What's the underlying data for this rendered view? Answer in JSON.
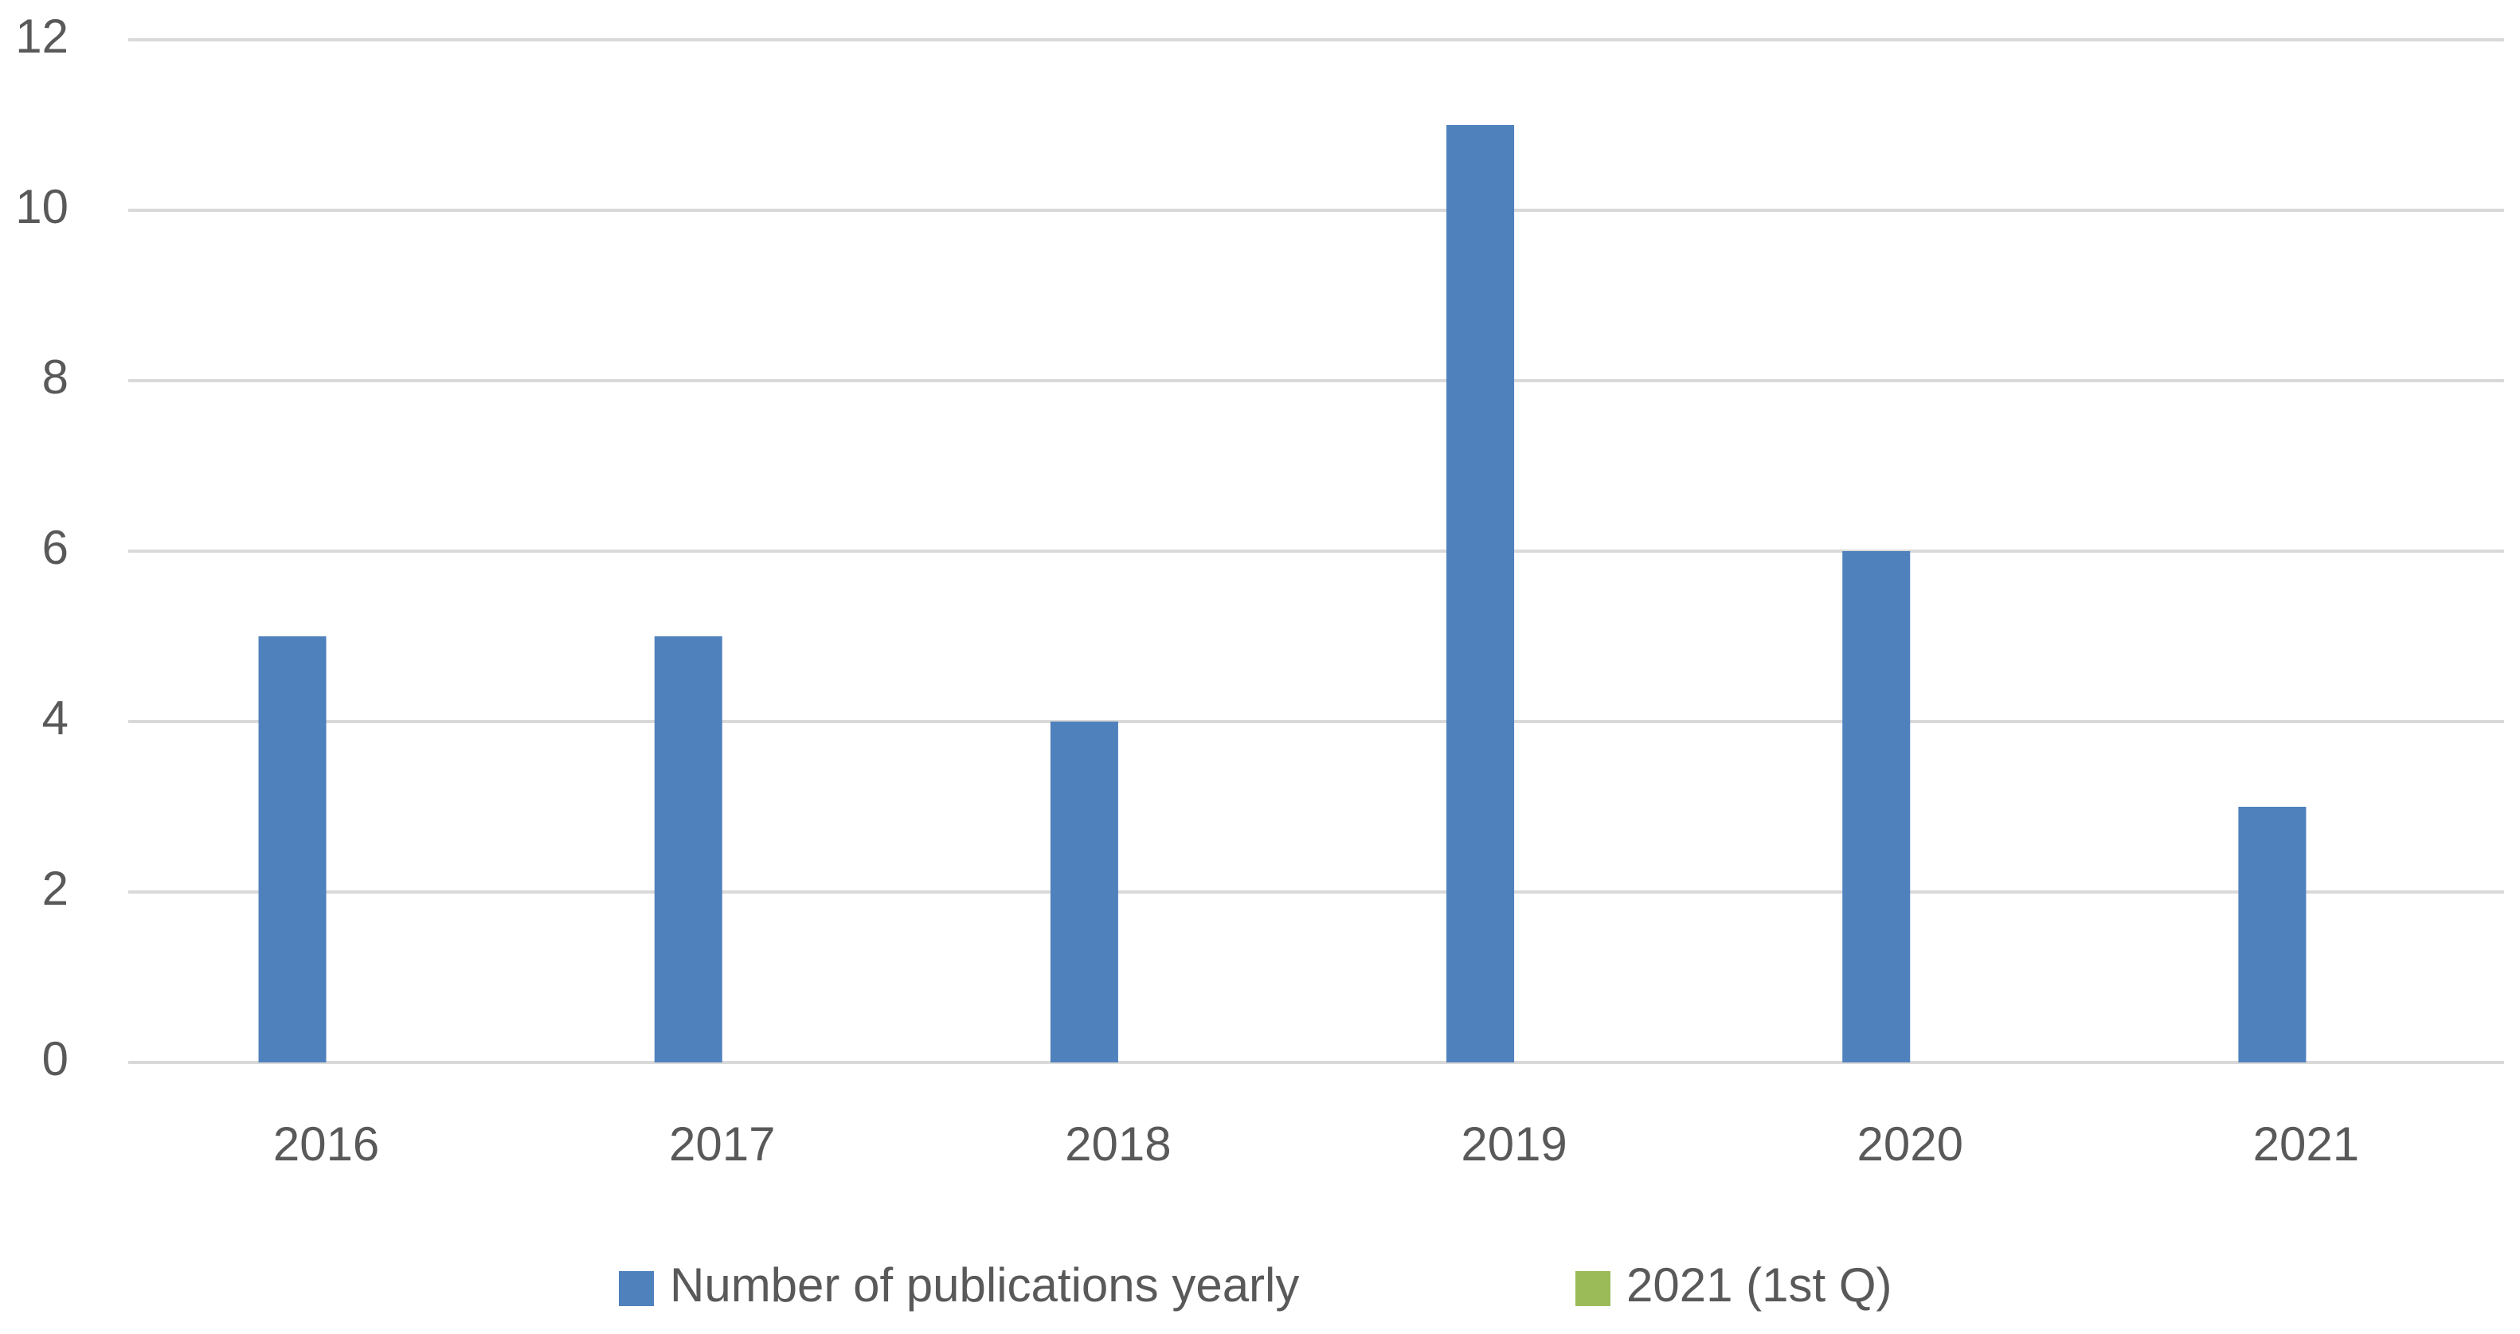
{
  "chart_data": {
    "type": "bar",
    "categories": [
      "2016",
      "2017",
      "2018",
      "2019",
      "2020",
      "2021"
    ],
    "series": [
      {
        "name": "Number of publications yearly",
        "color": "#4f81bd",
        "values": [
          5,
          5,
          4,
          11,
          6,
          3
        ]
      },
      {
        "name": "2021 (1st Q)",
        "color": "#9bbb59",
        "values": [
          null,
          null,
          null,
          null,
          null,
          null
        ]
      }
    ],
    "ylim": [
      0,
      12
    ],
    "yticks": [
      0,
      2,
      4,
      6,
      8,
      10,
      12
    ],
    "grid": true,
    "legend": "bottom"
  }
}
